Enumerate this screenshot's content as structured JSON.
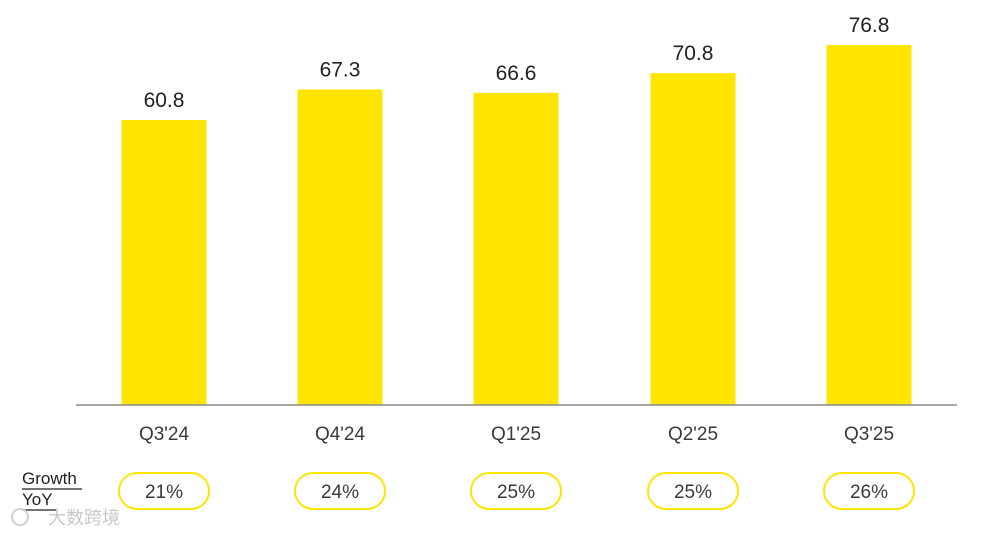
{
  "chart_data": {
    "type": "bar",
    "categories": [
      "Q3'24",
      "Q4'24",
      "Q1'25",
      "Q2'25",
      "Q3'25"
    ],
    "values": [
      60.8,
      67.3,
      66.6,
      70.8,
      76.8
    ],
    "value_labels": [
      "60.8",
      "67.3",
      "66.6",
      "70.8",
      "76.8"
    ],
    "ylim": [
      0,
      76.8
    ],
    "grid": false,
    "bar_color": "#FFE500"
  },
  "growth_row": {
    "header_line1": "Growth",
    "header_line2": "YoY",
    "values": [
      "21%",
      "24%",
      "25%",
      "25%",
      "26%"
    ]
  },
  "watermark": {
    "text": "大数跨境"
  }
}
